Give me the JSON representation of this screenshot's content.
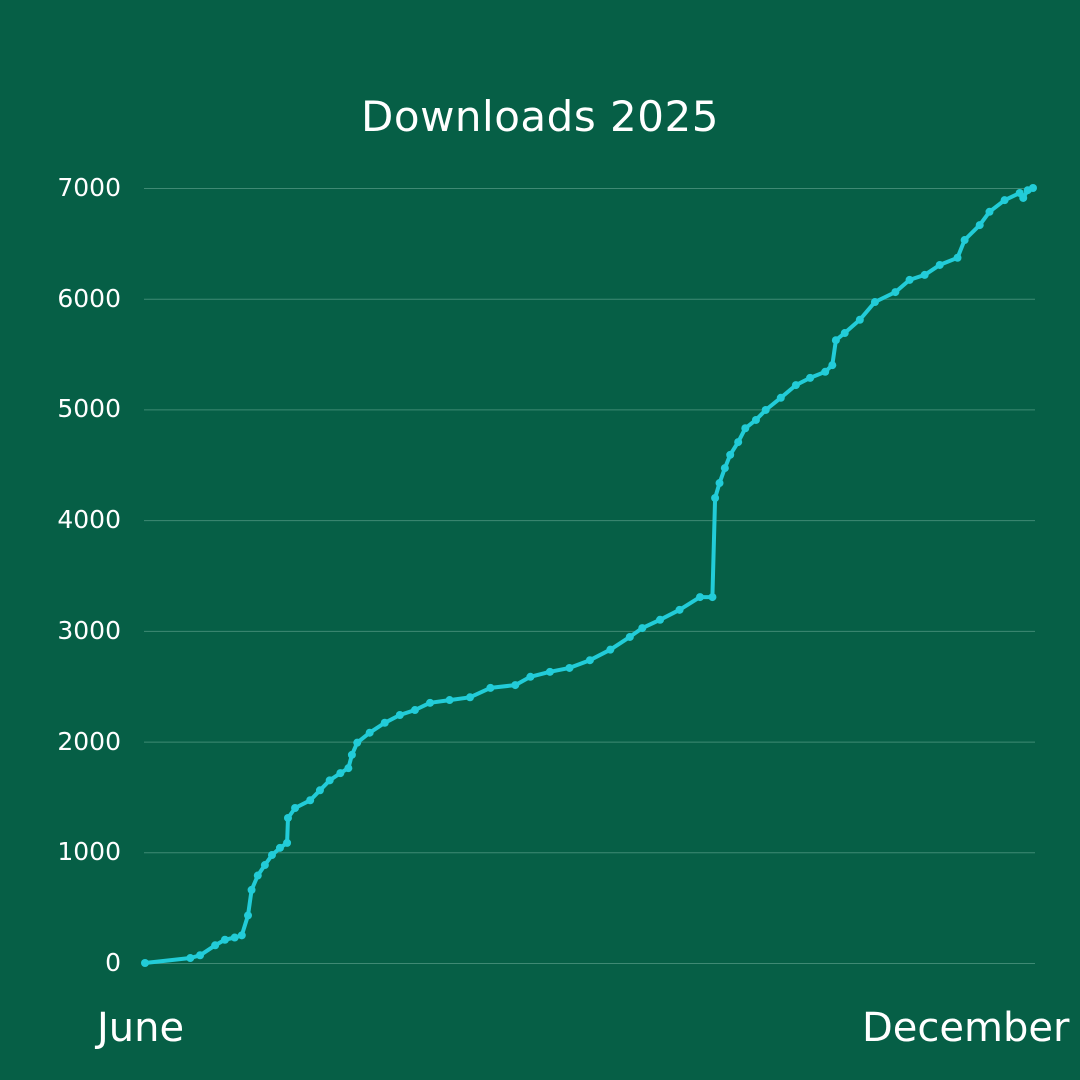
{
  "chart_data": {
    "type": "line",
    "title": "Downloads 2025",
    "xlabel": "",
    "ylabel": "",
    "x_tick_labels": [
      "June",
      "December"
    ],
    "y_ticks": [
      0,
      1000,
      2000,
      3000,
      4000,
      5000,
      6000,
      7000
    ],
    "ylim": [
      0,
      7000
    ],
    "grid": "horizontal",
    "legend": "none",
    "line_color": "#22ccd8",
    "marker": "circle",
    "series": [
      {
        "name": "Downloads",
        "x_fraction": [
          0.0,
          0.051,
          0.062,
          0.079,
          0.09,
          0.101,
          0.109,
          0.116,
          0.12,
          0.127,
          0.135,
          0.143,
          0.152,
          0.16,
          0.161,
          0.169,
          0.186,
          0.197,
          0.208,
          0.22,
          0.229,
          0.233,
          0.239,
          0.253,
          0.27,
          0.287,
          0.304,
          0.321,
          0.343,
          0.366,
          0.389,
          0.417,
          0.434,
          0.456,
          0.478,
          0.501,
          0.524,
          0.546,
          0.56,
          0.58,
          0.602,
          0.625,
          0.639,
          0.642,
          0.647,
          0.653,
          0.659,
          0.668,
          0.676,
          0.688,
          0.699,
          0.716,
          0.733,
          0.749,
          0.766,
          0.774,
          0.778,
          0.788,
          0.805,
          0.822,
          0.845,
          0.861,
          0.878,
          0.895,
          0.915,
          0.923,
          0.94,
          0.951,
          0.968,
          0.985,
          0.989,
          0.994,
          1.0
        ],
        "values": [
          0,
          45,
          70,
          160,
          210,
          230,
          250,
          430,
          660,
          790,
          885,
          975,
          1040,
          1085,
          1310,
          1400,
          1470,
          1560,
          1650,
          1715,
          1760,
          1880,
          1990,
          2080,
          2170,
          2240,
          2285,
          2350,
          2375,
          2400,
          2485,
          2510,
          2585,
          2630,
          2665,
          2735,
          2830,
          2945,
          3025,
          3100,
          3190,
          3305,
          3305,
          4200,
          4335,
          4470,
          4590,
          4705,
          4830,
          4905,
          4995,
          5105,
          5220,
          5285,
          5340,
          5400,
          5625,
          5690,
          5810,
          5970,
          6060,
          6170,
          6215,
          6305,
          6370,
          6530,
          6665,
          6785,
          6890,
          6955,
          6910,
          6980,
          7000
        ]
      }
    ]
  },
  "colors": {
    "background": "#065f46",
    "line": "#22ccd8",
    "grid": "#3f8a74",
    "text": "#ffffff"
  }
}
